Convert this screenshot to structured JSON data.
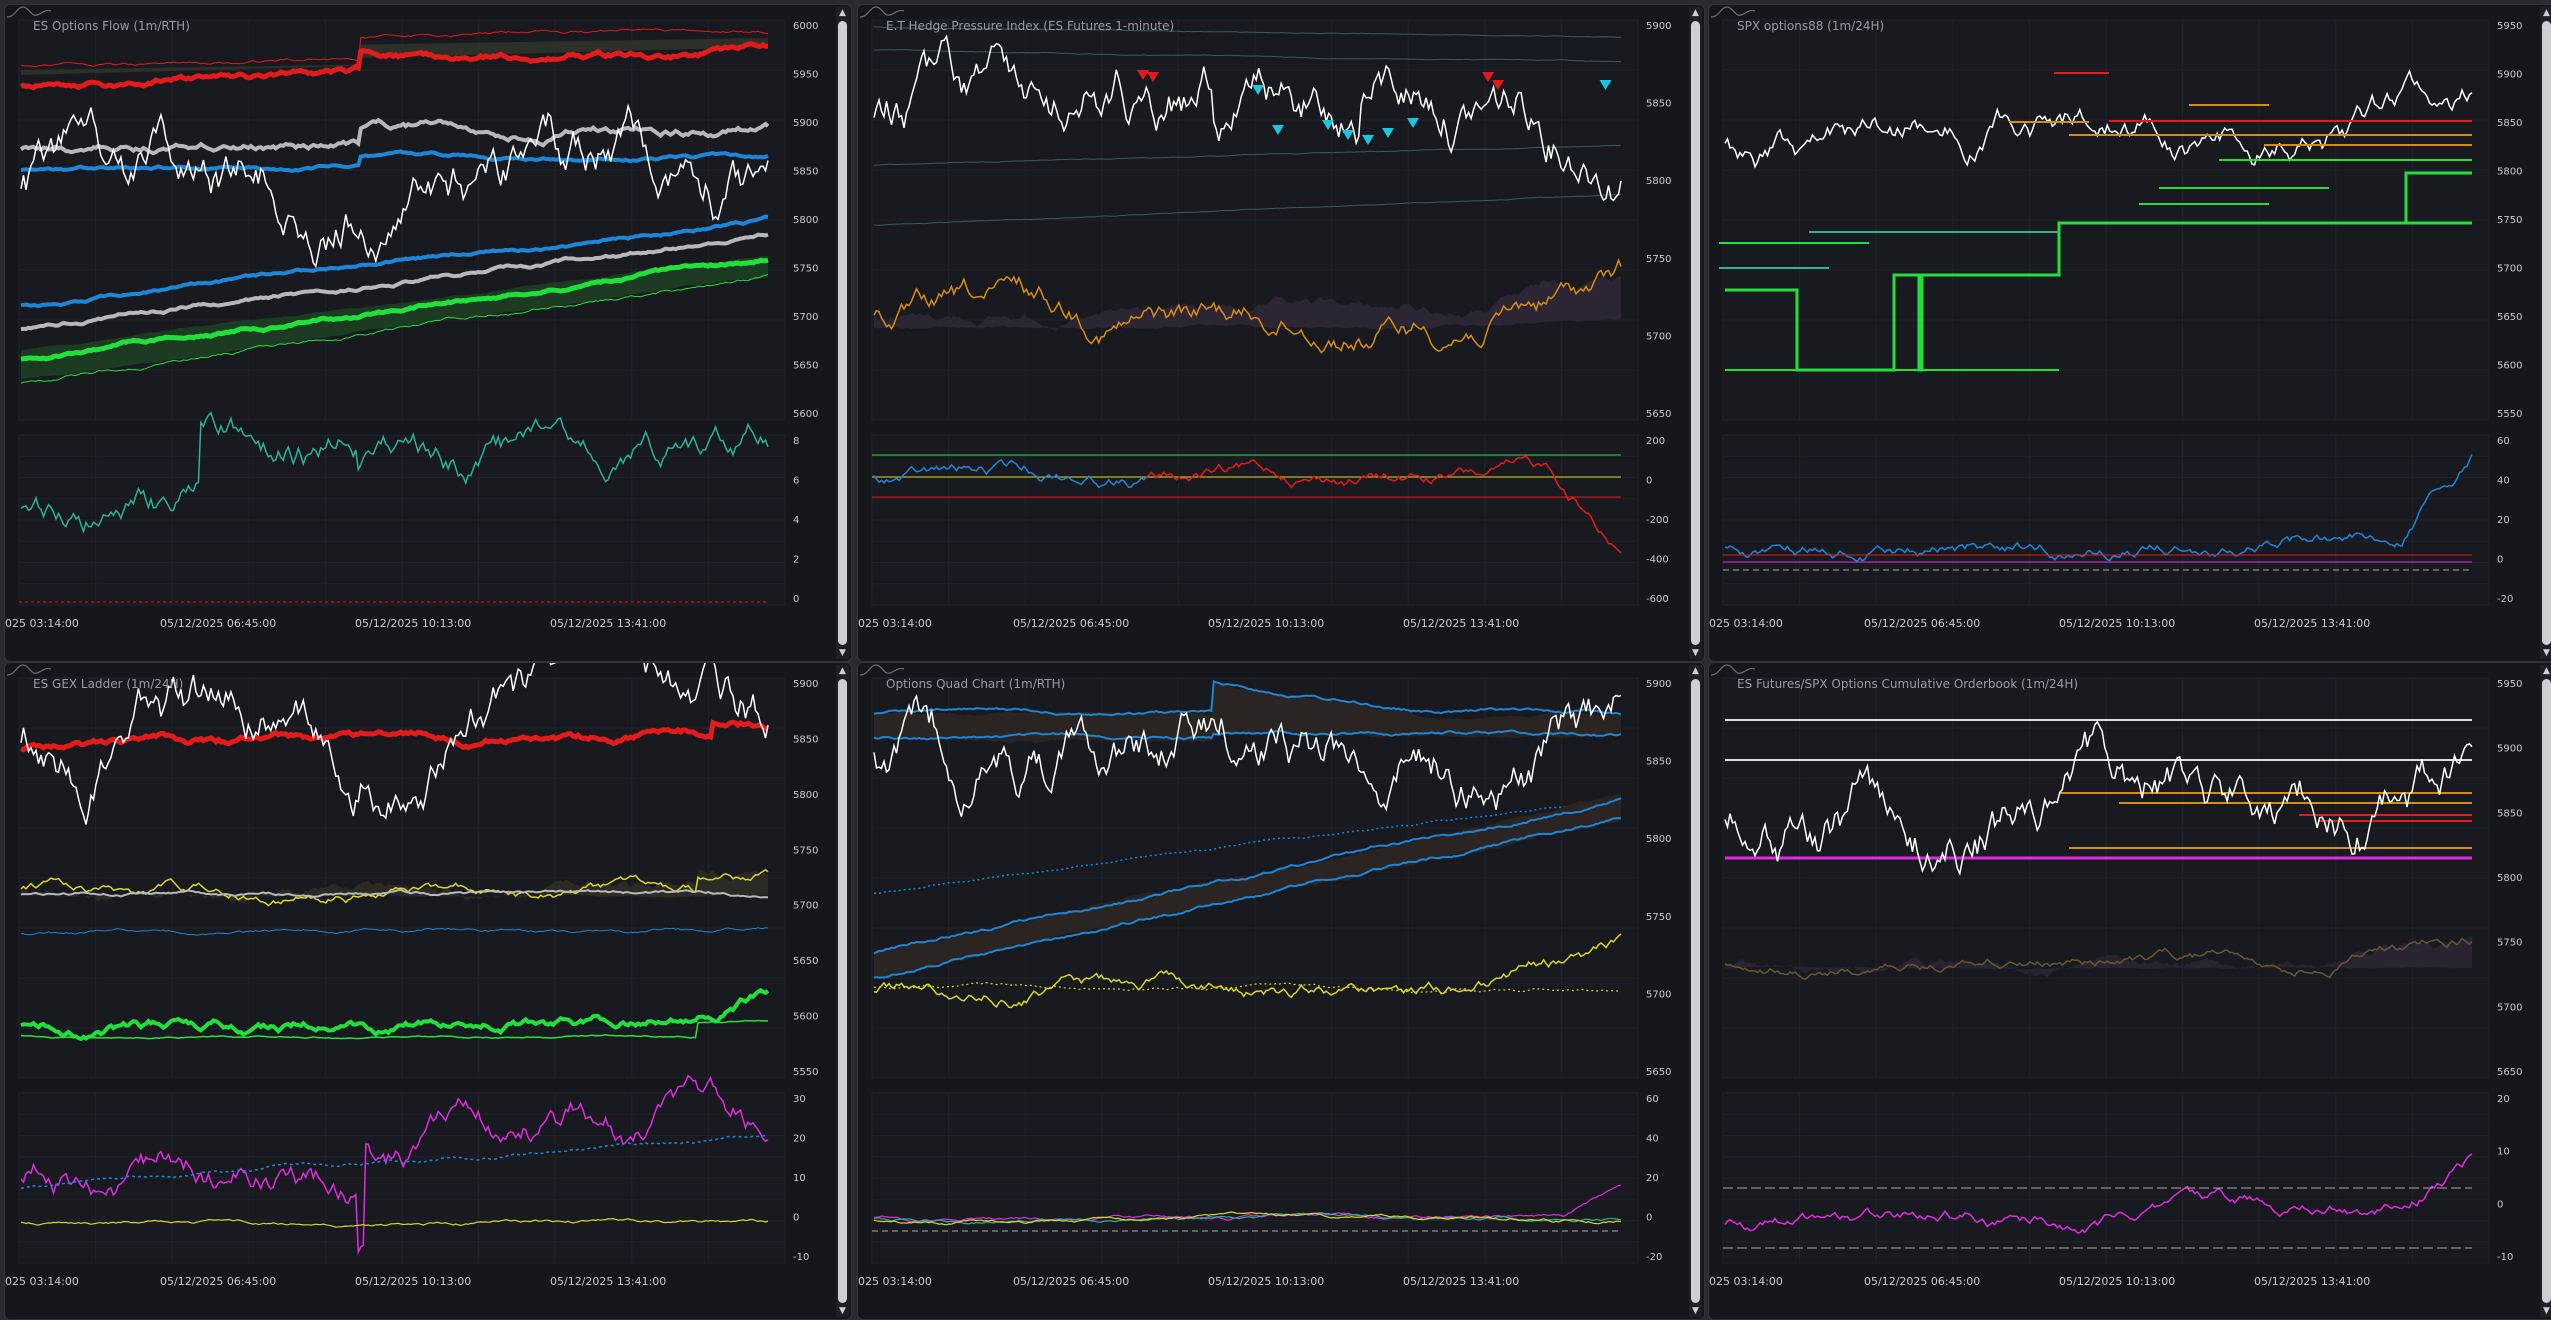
{
  "colors": {
    "bg": "#16171c",
    "white": "#ffffff",
    "red": "#e41b1b",
    "blue": "#1d86d6",
    "gray": "#b7b7bd",
    "green": "#22e03c",
    "teal": "#2bb39a",
    "yellow": "#d8d628",
    "magenta": "#e02ce0",
    "cyan": "#18c6dd",
    "orange": "#d88d12"
  },
  "xaxis_labels": [
    "025 03:14:00",
    "05/12/2025 06:45:00",
    "05/12/2025 10:13:00",
    "05/12/2025 13:41:00"
  ],
  "panels": [
    {
      "title": "ES Options Flow (1m/RTH)",
      "main_ticks": [
        "6000",
        "5950",
        "5900",
        "5850",
        "5800",
        "5750",
        "5700",
        "5650",
        "5600"
      ],
      "sub_ticks": [
        "8",
        "6",
        "4",
        "2",
        "0"
      ]
    },
    {
      "title": "E.T Hedge Pressure Index (ES Futures 1-minute)",
      "main_ticks": [
        "5900",
        "5850",
        "5800",
        "5750",
        "5700",
        "5650"
      ],
      "sub_ticks": [
        "200",
        "0",
        "-200",
        "-400",
        "-600"
      ]
    },
    {
      "title": "SPX options88 (1m/24H)",
      "main_ticks": [
        "5950",
        "5900",
        "5850",
        "5800",
        "5750",
        "5700",
        "5650",
        "5600",
        "5550"
      ],
      "sub_ticks": [
        "60",
        "40",
        "20",
        "0",
        "-20"
      ]
    },
    {
      "title": "ES GEX Ladder (1m/24H)",
      "main_ticks": [
        "5900",
        "5850",
        "5800",
        "5750",
        "5700",
        "5650",
        "5600",
        "5550"
      ],
      "sub_ticks": [
        "30",
        "20",
        "10",
        "0",
        "-10"
      ]
    },
    {
      "title": "Options Quad Chart (1m/RTH)",
      "main_ticks": [
        "5900",
        "5850",
        "5800",
        "5750",
        "5700",
        "5650"
      ],
      "sub_ticks": [
        "60",
        "40",
        "20",
        "0",
        "-20"
      ]
    },
    {
      "title": "ES Futures/SPX Options Cumulative Orderbook (1m/24H)",
      "main_ticks": [
        "5950",
        "5900",
        "5850",
        "5800",
        "5750",
        "5700",
        "5650"
      ],
      "sub_ticks": [
        "20",
        "10",
        "0",
        "-10"
      ]
    }
  ]
}
